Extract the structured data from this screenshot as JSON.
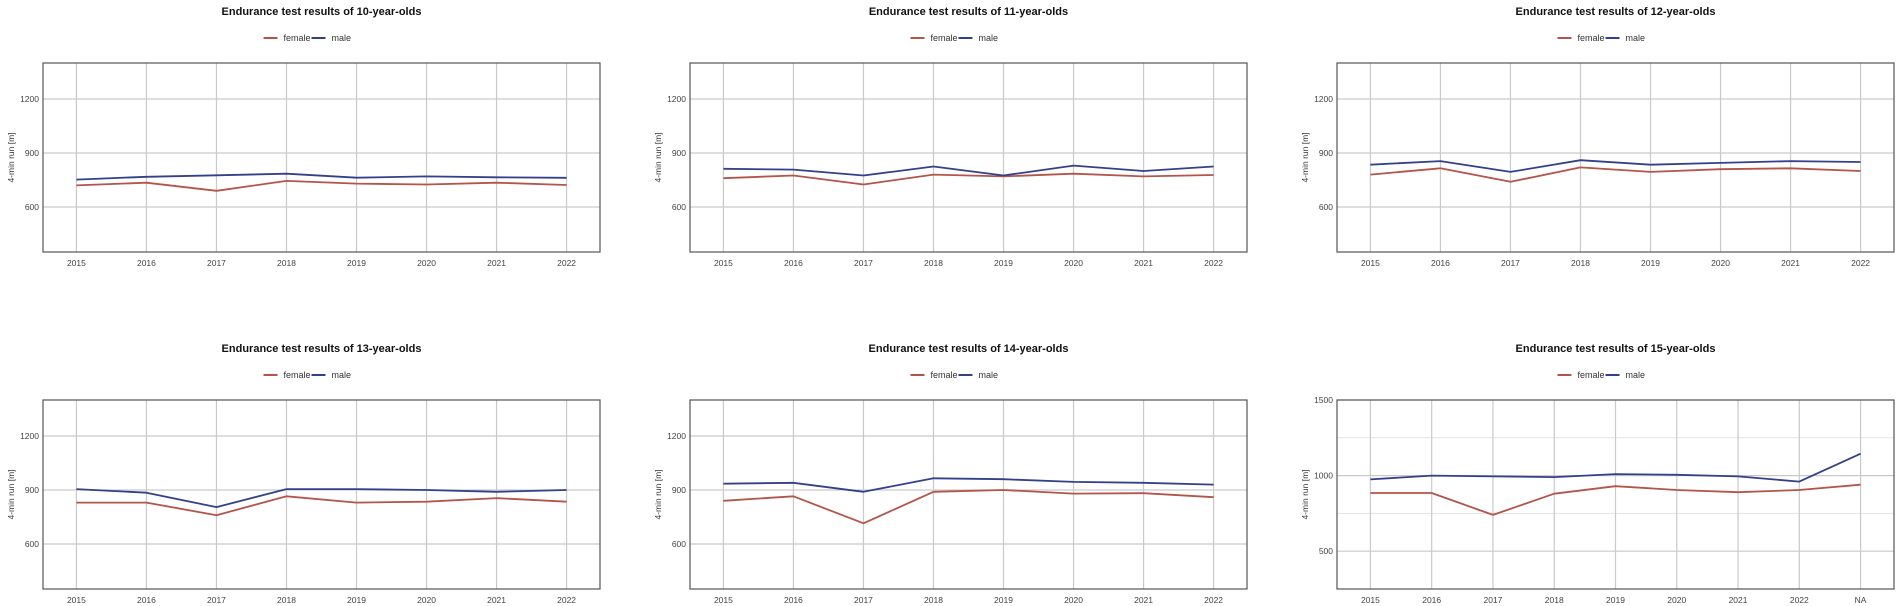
{
  "colors": {
    "female": "#b5544a",
    "male": "#34408a",
    "grid": "#c9c9c9",
    "frame": "#555555"
  },
  "chart_data": [
    {
      "type": "line",
      "title": "Endurance test results of 10-year-olds",
      "ylabel": "4-min run [m]",
      "categories": [
        "2015",
        "2016",
        "2017",
        "2018",
        "2019",
        "2020",
        "2021",
        "2022"
      ],
      "ylim": [
        350,
        1400
      ],
      "yticks": [
        600,
        900,
        1200
      ],
      "legend": "top-center",
      "grid": true,
      "series": [
        {
          "name": "female",
          "values": [
            720,
            735,
            690,
            745,
            730,
            725,
            735,
            722
          ]
        },
        {
          "name": "male",
          "values": [
            752,
            768,
            776,
            785,
            763,
            770,
            765,
            762
          ]
        }
      ]
    },
    {
      "type": "line",
      "title": "Endurance test results of 11-year-olds",
      "ylabel": "4-min run [m]",
      "categories": [
        "2015",
        "2016",
        "2017",
        "2018",
        "2019",
        "2020",
        "2021",
        "2022"
      ],
      "ylim": [
        350,
        1400
      ],
      "yticks": [
        600,
        900,
        1200
      ],
      "legend": "top-center",
      "grid": true,
      "series": [
        {
          "name": "female",
          "values": [
            760,
            775,
            725,
            780,
            770,
            785,
            770,
            778
          ]
        },
        {
          "name": "male",
          "values": [
            812,
            808,
            775,
            825,
            775,
            830,
            800,
            825
          ]
        }
      ]
    },
    {
      "type": "line",
      "title": "Endurance test results of 12-year-olds",
      "ylabel": "4-min run [m]",
      "categories": [
        "2015",
        "2016",
        "2017",
        "2018",
        "2019",
        "2020",
        "2021",
        "2022"
      ],
      "ylim": [
        350,
        1400
      ],
      "yticks": [
        600,
        900,
        1200
      ],
      "legend": "top-center",
      "grid": true,
      "series": [
        {
          "name": "female",
          "values": [
            780,
            815,
            740,
            820,
            795,
            810,
            815,
            800
          ]
        },
        {
          "name": "male",
          "values": [
            835,
            855,
            795,
            860,
            835,
            845,
            855,
            850
          ]
        }
      ]
    },
    {
      "type": "line",
      "title": "Endurance test results of 13-year-olds",
      "ylabel": "4-min run [m]",
      "categories": [
        "2015",
        "2016",
        "2017",
        "2018",
        "2019",
        "2020",
        "2021",
        "2022"
      ],
      "ylim": [
        350,
        1400
      ],
      "yticks": [
        600,
        900,
        1200
      ],
      "legend": "top-center",
      "grid": true,
      "series": [
        {
          "name": "female",
          "values": [
            830,
            830,
            760,
            865,
            830,
            835,
            855,
            835
          ]
        },
        {
          "name": "male",
          "values": [
            905,
            885,
            805,
            905,
            905,
            900,
            890,
            900
          ]
        }
      ]
    },
    {
      "type": "line",
      "title": "Endurance test results of 14-year-olds",
      "ylabel": "4-min run [m]",
      "categories": [
        "2015",
        "2016",
        "2017",
        "2018",
        "2019",
        "2020",
        "2021",
        "2022"
      ],
      "ylim": [
        350,
        1400
      ],
      "yticks": [
        600,
        900,
        1200
      ],
      "legend": "top-center",
      "grid": true,
      "series": [
        {
          "name": "female",
          "values": [
            840,
            865,
            715,
            890,
            900,
            880,
            882,
            860
          ]
        },
        {
          "name": "male",
          "values": [
            935,
            940,
            890,
            965,
            960,
            945,
            940,
            930
          ]
        }
      ]
    },
    {
      "type": "line",
      "title": "Endurance test results of 15-year-olds",
      "ylabel": "4-min run [m]",
      "categories": [
        "2015",
        "2016",
        "2017",
        "2018",
        "2019",
        "2020",
        "2021",
        "2022",
        "NA"
      ],
      "ylim": [
        250,
        1500
      ],
      "yticks": [
        500,
        1000,
        1500
      ],
      "legend": "top-center",
      "grid": true,
      "series": [
        {
          "name": "female",
          "values": [
            885,
            885,
            740,
            880,
            930,
            905,
            890,
            905,
            940
          ]
        },
        {
          "name": "male",
          "values": [
            975,
            1000,
            995,
            990,
            1010,
            1005,
            995,
            960,
            1145
          ]
        }
      ]
    }
  ]
}
